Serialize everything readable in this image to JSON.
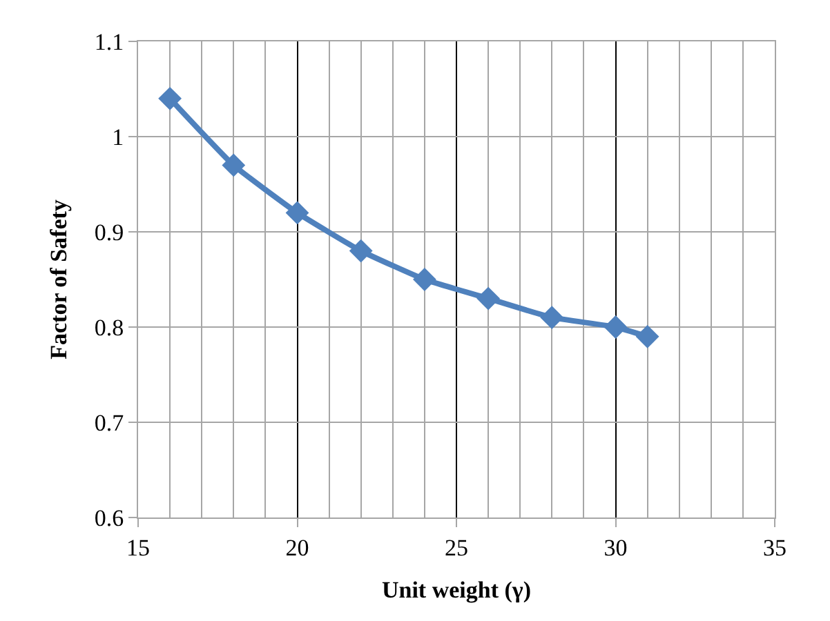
{
  "chart_data": {
    "type": "line",
    "xlabel": "Unit weight (γ)",
    "ylabel": "Factor of Safety",
    "x": [
      16,
      18,
      20,
      22,
      24,
      26,
      28,
      30,
      31
    ],
    "series": [
      {
        "color": "#4f81bd",
        "values": [
          1.04,
          0.97,
          0.92,
          0.88,
          0.85,
          0.83,
          0.81,
          0.8,
          0.79
        ]
      }
    ],
    "xlim": [
      15,
      35
    ],
    "xticks": [
      15,
      20,
      25,
      30,
      35
    ],
    "ylim": [
      0.6,
      1.1
    ],
    "yticks": [
      0.6,
      0.7,
      0.8,
      0.9,
      1,
      1.1
    ],
    "grid": true,
    "marker": "diamond",
    "line_style": "solid",
    "legend": false
  }
}
